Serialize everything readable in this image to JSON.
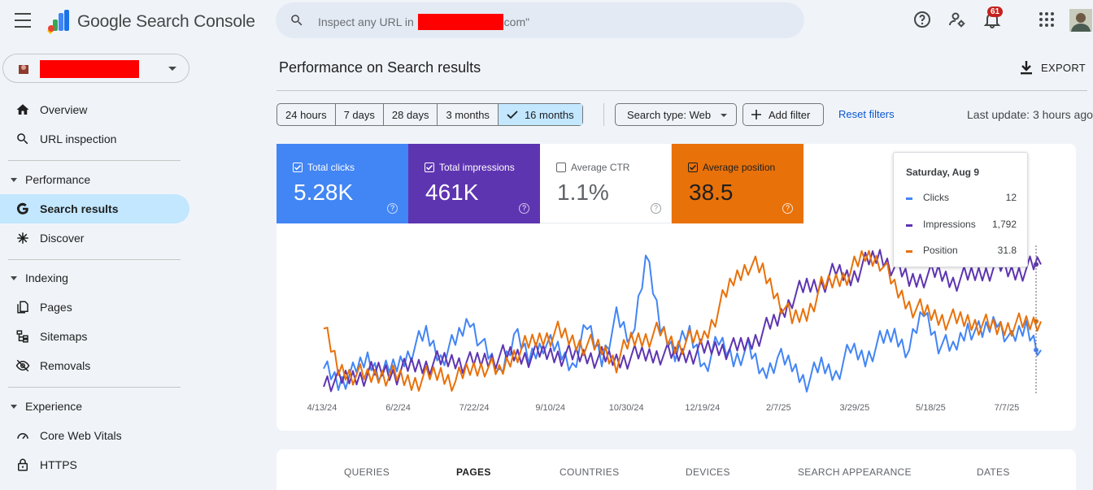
{
  "app": {
    "title": "Google Search Console"
  },
  "search": {
    "prefix": "Inspect any URL in",
    "suffix": "com\""
  },
  "notifications": {
    "count": "61"
  },
  "sidebar": {
    "items": {
      "overview": "Overview",
      "url_inspection": "URL inspection",
      "performance": "Performance",
      "search_results": "Search results",
      "discover": "Discover",
      "indexing": "Indexing",
      "pages": "Pages",
      "sitemaps": "Sitemaps",
      "removals": "Removals",
      "experience": "Experience",
      "core_web_vitals": "Core Web Vitals",
      "https": "HTTPS"
    }
  },
  "header": {
    "title": "Performance on Search results",
    "export_label": "EXPORT"
  },
  "filters": {
    "date_ranges": [
      "24 hours",
      "7 days",
      "28 days",
      "3 months",
      "16 months"
    ],
    "selected_range": "16 months",
    "search_type": "Search type: Web",
    "add_filter": "Add filter",
    "reset": "Reset filters",
    "last_update": "Last update: 3 hours ago"
  },
  "metrics": [
    {
      "label": "Total clicks",
      "value": "5.28K",
      "checked": true,
      "color": "#4285f4"
    },
    {
      "label": "Total impressions",
      "value": "461K",
      "checked": true,
      "color": "#5e35b1"
    },
    {
      "label": "Average CTR",
      "value": "1.1%",
      "checked": false,
      "color": "#ffffff"
    },
    {
      "label": "Average position",
      "value": "38.5",
      "checked": true,
      "color": "#e8710a"
    }
  ],
  "tooltip": {
    "date": "Saturday, Aug 9",
    "rows": [
      {
        "name": "Clicks",
        "value": "12",
        "color": "#4285f4"
      },
      {
        "name": "Impressions",
        "value": "1,792",
        "color": "#5e35b1"
      },
      {
        "name": "Position",
        "value": "31.8",
        "color": "#e8710a"
      }
    ]
  },
  "chart_data": {
    "type": "line",
    "x_tick_labels": [
      "4/13/24",
      "6/2/24",
      "7/22/24",
      "9/10/24",
      "10/30/24",
      "12/19/24",
      "2/7/25",
      "3/29/25",
      "5/18/25",
      "7/7/25"
    ],
    "date_range": [
      "2024-04-13",
      "2025-08-10"
    ],
    "series": [
      {
        "name": "Clicks",
        "color": "#4285f4",
        "values": [
          10,
          8,
          9,
          11,
          9,
          10,
          12,
          14,
          11,
          13,
          16,
          12,
          9,
          14,
          11,
          13,
          12,
          10,
          15,
          11,
          16,
          13,
          24,
          15,
          12,
          14,
          10,
          13,
          11,
          12,
          9,
          11,
          10,
          8,
          10,
          9,
          12,
          11,
          13,
          14,
          12,
          17,
          13,
          12,
          15,
          14,
          16,
          13,
          15,
          12
        ]
      },
      {
        "name": "Impressions",
        "color": "#5e35b1",
        "values": [
          420,
          380,
          440,
          470,
          520,
          480,
          560,
          590,
          620,
          640,
          600,
          650,
          680,
          700,
          690,
          720,
          710,
          680,
          700,
          660,
          640,
          680,
          700,
          720,
          690,
          720,
          760,
          800,
          770,
          840,
          980,
          1120,
          1400,
          1520,
          1560,
          1700,
          1640,
          1800,
          1900,
          1760,
          1600,
          1650,
          1680,
          1600,
          1640,
          1700,
          1760,
          1700,
          1740,
          1792
        ]
      },
      {
        "name": "Position",
        "color": "#e8710a",
        "values": [
          30,
          20,
          19,
          18,
          19,
          18,
          17,
          18,
          19,
          17,
          20,
          21,
          19,
          24,
          26,
          28,
          29,
          27,
          26,
          25,
          22,
          27,
          28,
          29,
          26,
          27,
          28,
          35,
          42,
          46,
          44,
          38,
          32,
          34,
          40,
          42,
          44,
          48,
          47,
          40,
          36,
          34,
          33,
          32,
          32,
          31,
          30,
          31,
          31,
          31.8
        ]
      }
    ]
  },
  "tabs": [
    "QUERIES",
    "PAGES",
    "COUNTRIES",
    "DEVICES",
    "SEARCH APPEARANCE",
    "DATES"
  ],
  "active_tab": "PAGES"
}
